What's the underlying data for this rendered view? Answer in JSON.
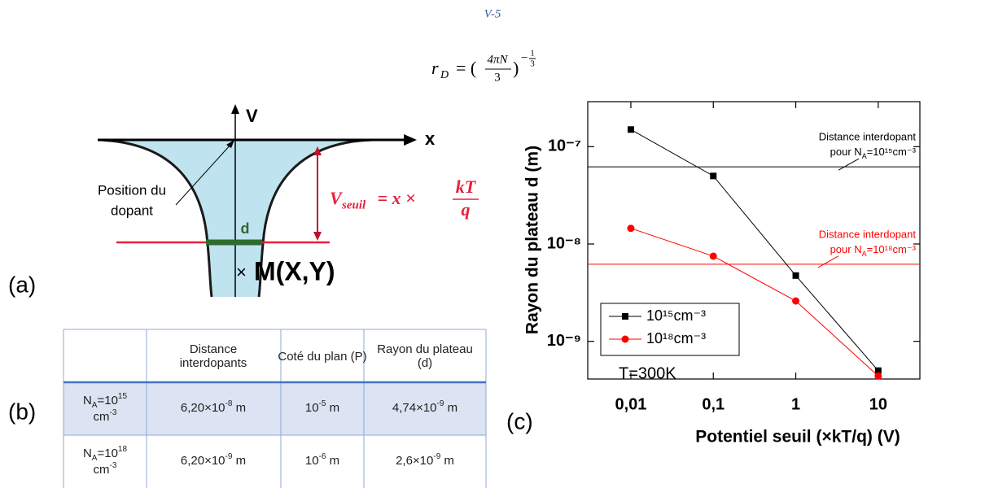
{
  "header": "V-5",
  "equation": {
    "lhs": "r",
    "lhs_sub": "D",
    "eq": "= (",
    "num": "4πN",
    "den": "3",
    "close": ")",
    "exp_sign": "−",
    "exp_num": "1",
    "exp_den": "3"
  },
  "panel_labels": [
    "(a)",
    "(b)",
    "(c)"
  ],
  "diagram": {
    "v_axis": "V",
    "x_axis": "x",
    "dopant_label": [
      "Position du",
      "dopant"
    ],
    "d_label": "d",
    "point_mark": "×",
    "point_label": "M(X,Y)",
    "threshold": {
      "v": "V",
      "sub": "seuil",
      "eq": " = x × ",
      "num": "kT",
      "den": "q"
    }
  },
  "table": {
    "header": [
      "Distance interdopants",
      "Coté du plan (P)",
      "Rayon du plateau (d)"
    ],
    "rows": [
      {
        "label": {
          "n": "N",
          "sub": "A",
          "eq": "=10",
          "sup": "15",
          "unit": "cm",
          "unit_sup": "-3"
        },
        "cells": [
          {
            "mant": "6,20×10",
            "exp": "-8",
            "unit": " m"
          },
          {
            "mant": "10",
            "exp": "-5",
            "unit": " m"
          },
          {
            "mant": "4,74×10",
            "exp": "-9",
            "unit": " m"
          }
        ]
      },
      {
        "label": {
          "n": "N",
          "sub": "A",
          "eq": "=10",
          "sup": "18",
          "unit": "cm",
          "unit_sup": "-3"
        },
        "cells": [
          {
            "mant": "6,20×10",
            "exp": "-9",
            "unit": " m"
          },
          {
            "mant": "10",
            "exp": "-6",
            "unit": " m"
          },
          {
            "mant": "2,6×10",
            "exp": "-9",
            "unit": " m"
          }
        ]
      }
    ]
  },
  "chart_data": {
    "type": "line",
    "log_x": true,
    "log_y": true,
    "x_label": "Potentiel seuil (×kT/q) (V)",
    "y_label": "Rayon du plateau d (m)",
    "x": [
      0.01,
      0.1,
      1,
      10
    ],
    "series": [
      {
        "name": "10¹⁵cm⁻³",
        "color": "#000000",
        "marker": "square",
        "values": [
          1.5e-07,
          5e-08,
          4.74e-09,
          5e-10
        ]
      },
      {
        "name": "10¹⁸cm⁻³",
        "color": "#ff0000",
        "marker": "circle",
        "values": [
          1.45e-08,
          7.5e-09,
          2.6e-09,
          4.4e-10
        ]
      }
    ],
    "hlines": [
      {
        "value": 6.2e-08,
        "color": "#000000",
        "text": [
          "Distance interdopant",
          "pour N",
          "A",
          "=10¹⁵cm⁻³"
        ]
      },
      {
        "value": 6.2e-09,
        "color": "#ff0000",
        "text": [
          "Distance interdopant",
          "pour N",
          "A",
          "=10¹⁸cm⁻³"
        ]
      }
    ],
    "annotation": "T=300K",
    "xlim": [
      0.003,
      32
    ],
    "ylim": [
      4.1e-10,
      2.9e-07
    ],
    "xticks": [
      {
        "value": 0.01,
        "label": "0,01"
      },
      {
        "value": 0.1,
        "label": "0,1"
      },
      1,
      10
    ],
    "yticks": [
      {
        "value": 1e-09,
        "label": "10⁻⁹"
      },
      {
        "value": 1e-08,
        "label": "10⁻⁸"
      },
      {
        "value": 1e-07,
        "label": "10⁻⁷"
      }
    ],
    "legend": "lower-left"
  }
}
